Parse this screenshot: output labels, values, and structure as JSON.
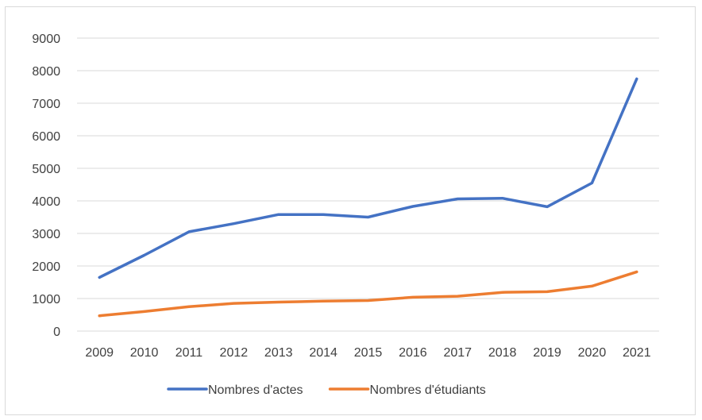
{
  "chart_data": {
    "type": "line",
    "title": "",
    "xlabel": "",
    "ylabel": "",
    "x": [
      "2009",
      "2010",
      "2011",
      "2012",
      "2013",
      "2014",
      "2015",
      "2016",
      "2017",
      "2018",
      "2019",
      "2020",
      "2021"
    ],
    "ylim": [
      0,
      9000
    ],
    "yticks": [
      0,
      1000,
      2000,
      3000,
      4000,
      5000,
      6000,
      7000,
      8000,
      9000
    ],
    "grid": true,
    "legend_position": "bottom",
    "series": [
      {
        "name": "Nombres d'actes",
        "color": "#4472C4",
        "values": [
          1650,
          2330,
          3050,
          3300,
          3580,
          3580,
          3500,
          3830,
          4060,
          4080,
          3820,
          4550,
          7750
        ]
      },
      {
        "name": "Nombres d'étudiants",
        "color": "#ED7D31",
        "values": [
          470,
          600,
          750,
          850,
          890,
          920,
          940,
          1040,
          1070,
          1190,
          1210,
          1380,
          1820
        ]
      }
    ]
  }
}
